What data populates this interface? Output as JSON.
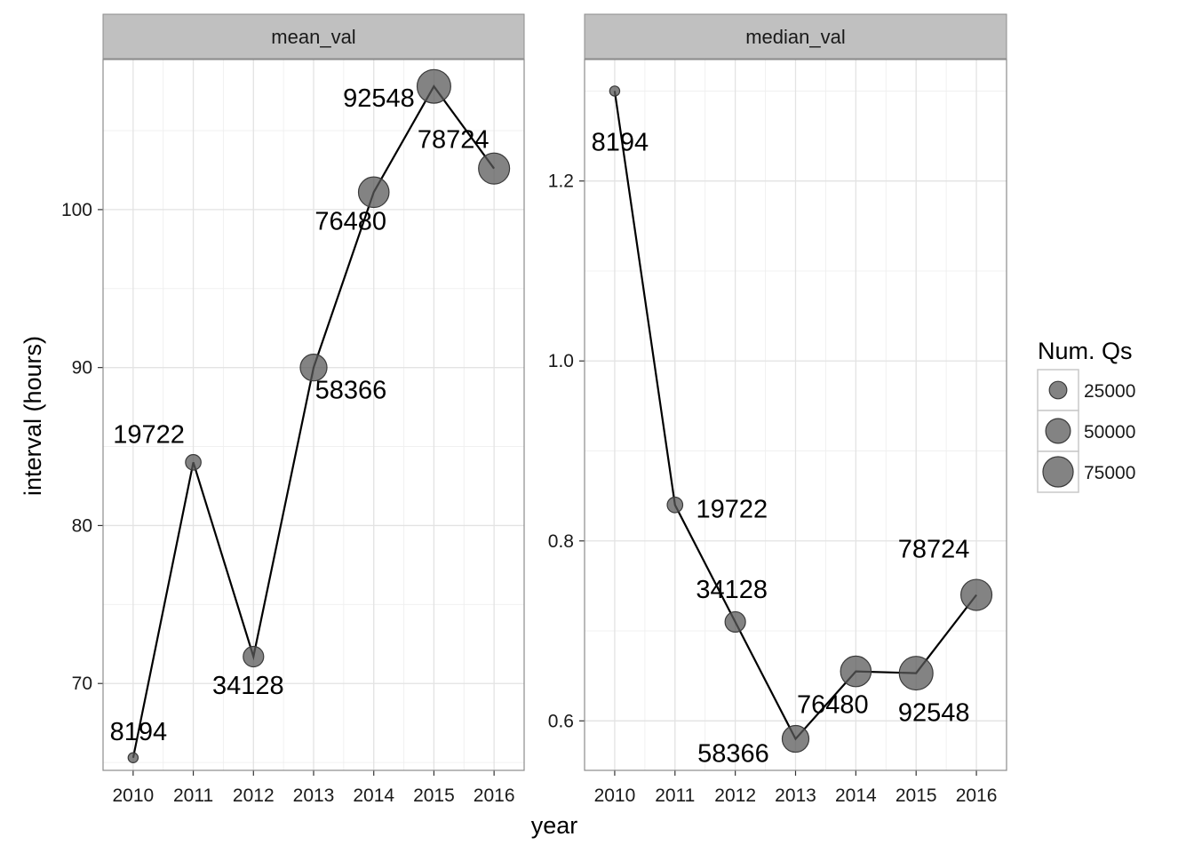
{
  "chart_data": {
    "type": "scatter",
    "xlabel": "year",
    "ylabel": "interval (hours)",
    "x": [
      2010,
      2011,
      2012,
      2013,
      2014,
      2015,
      2016
    ],
    "x_tick_labels": [
      "2010",
      "2011",
      "2012",
      "2013",
      "2014",
      "2015",
      "2016"
    ],
    "grid": true,
    "line_color": "#000000",
    "point_color": "#595959",
    "strip_color": "#c0c0c0",
    "facets": [
      {
        "title": "mean_val",
        "ylim": [
          64.5,
          109.5
        ],
        "y_ticks": [
          70,
          80,
          90,
          100
        ],
        "y_tick_labels": [
          "70",
          "80",
          "90",
          "100"
        ],
        "values": [
          65.3,
          84.0,
          71.7,
          90.0,
          101.1,
          107.8,
          102.6
        ],
        "sizes": [
          8194,
          19722,
          34128,
          58366,
          76480,
          92548,
          78724
        ],
        "labels": [
          "8194",
          "19722",
          "34128",
          "58366",
          "76480",
          "92548",
          "78724"
        ]
      },
      {
        "title": "median_val",
        "ylim": [
          0.545,
          1.335
        ],
        "y_ticks": [
          0.6,
          0.8,
          1.0,
          1.2
        ],
        "y_tick_labels": [
          "0.6",
          "0.8",
          "1.0",
          "1.2"
        ],
        "values": [
          1.3,
          0.84,
          0.71,
          0.58,
          0.655,
          0.653,
          0.74
        ],
        "sizes": [
          8194,
          19722,
          34128,
          58366,
          76480,
          92548,
          78724
        ],
        "labels": [
          "8194",
          "19722",
          "34128",
          "58366",
          "76480",
          "92548",
          "78724"
        ]
      }
    ],
    "legend": {
      "title": "Num. Qs",
      "position": "right",
      "values": [
        25000,
        50000,
        75000
      ],
      "labels": [
        "25000",
        "50000",
        "75000"
      ]
    }
  }
}
